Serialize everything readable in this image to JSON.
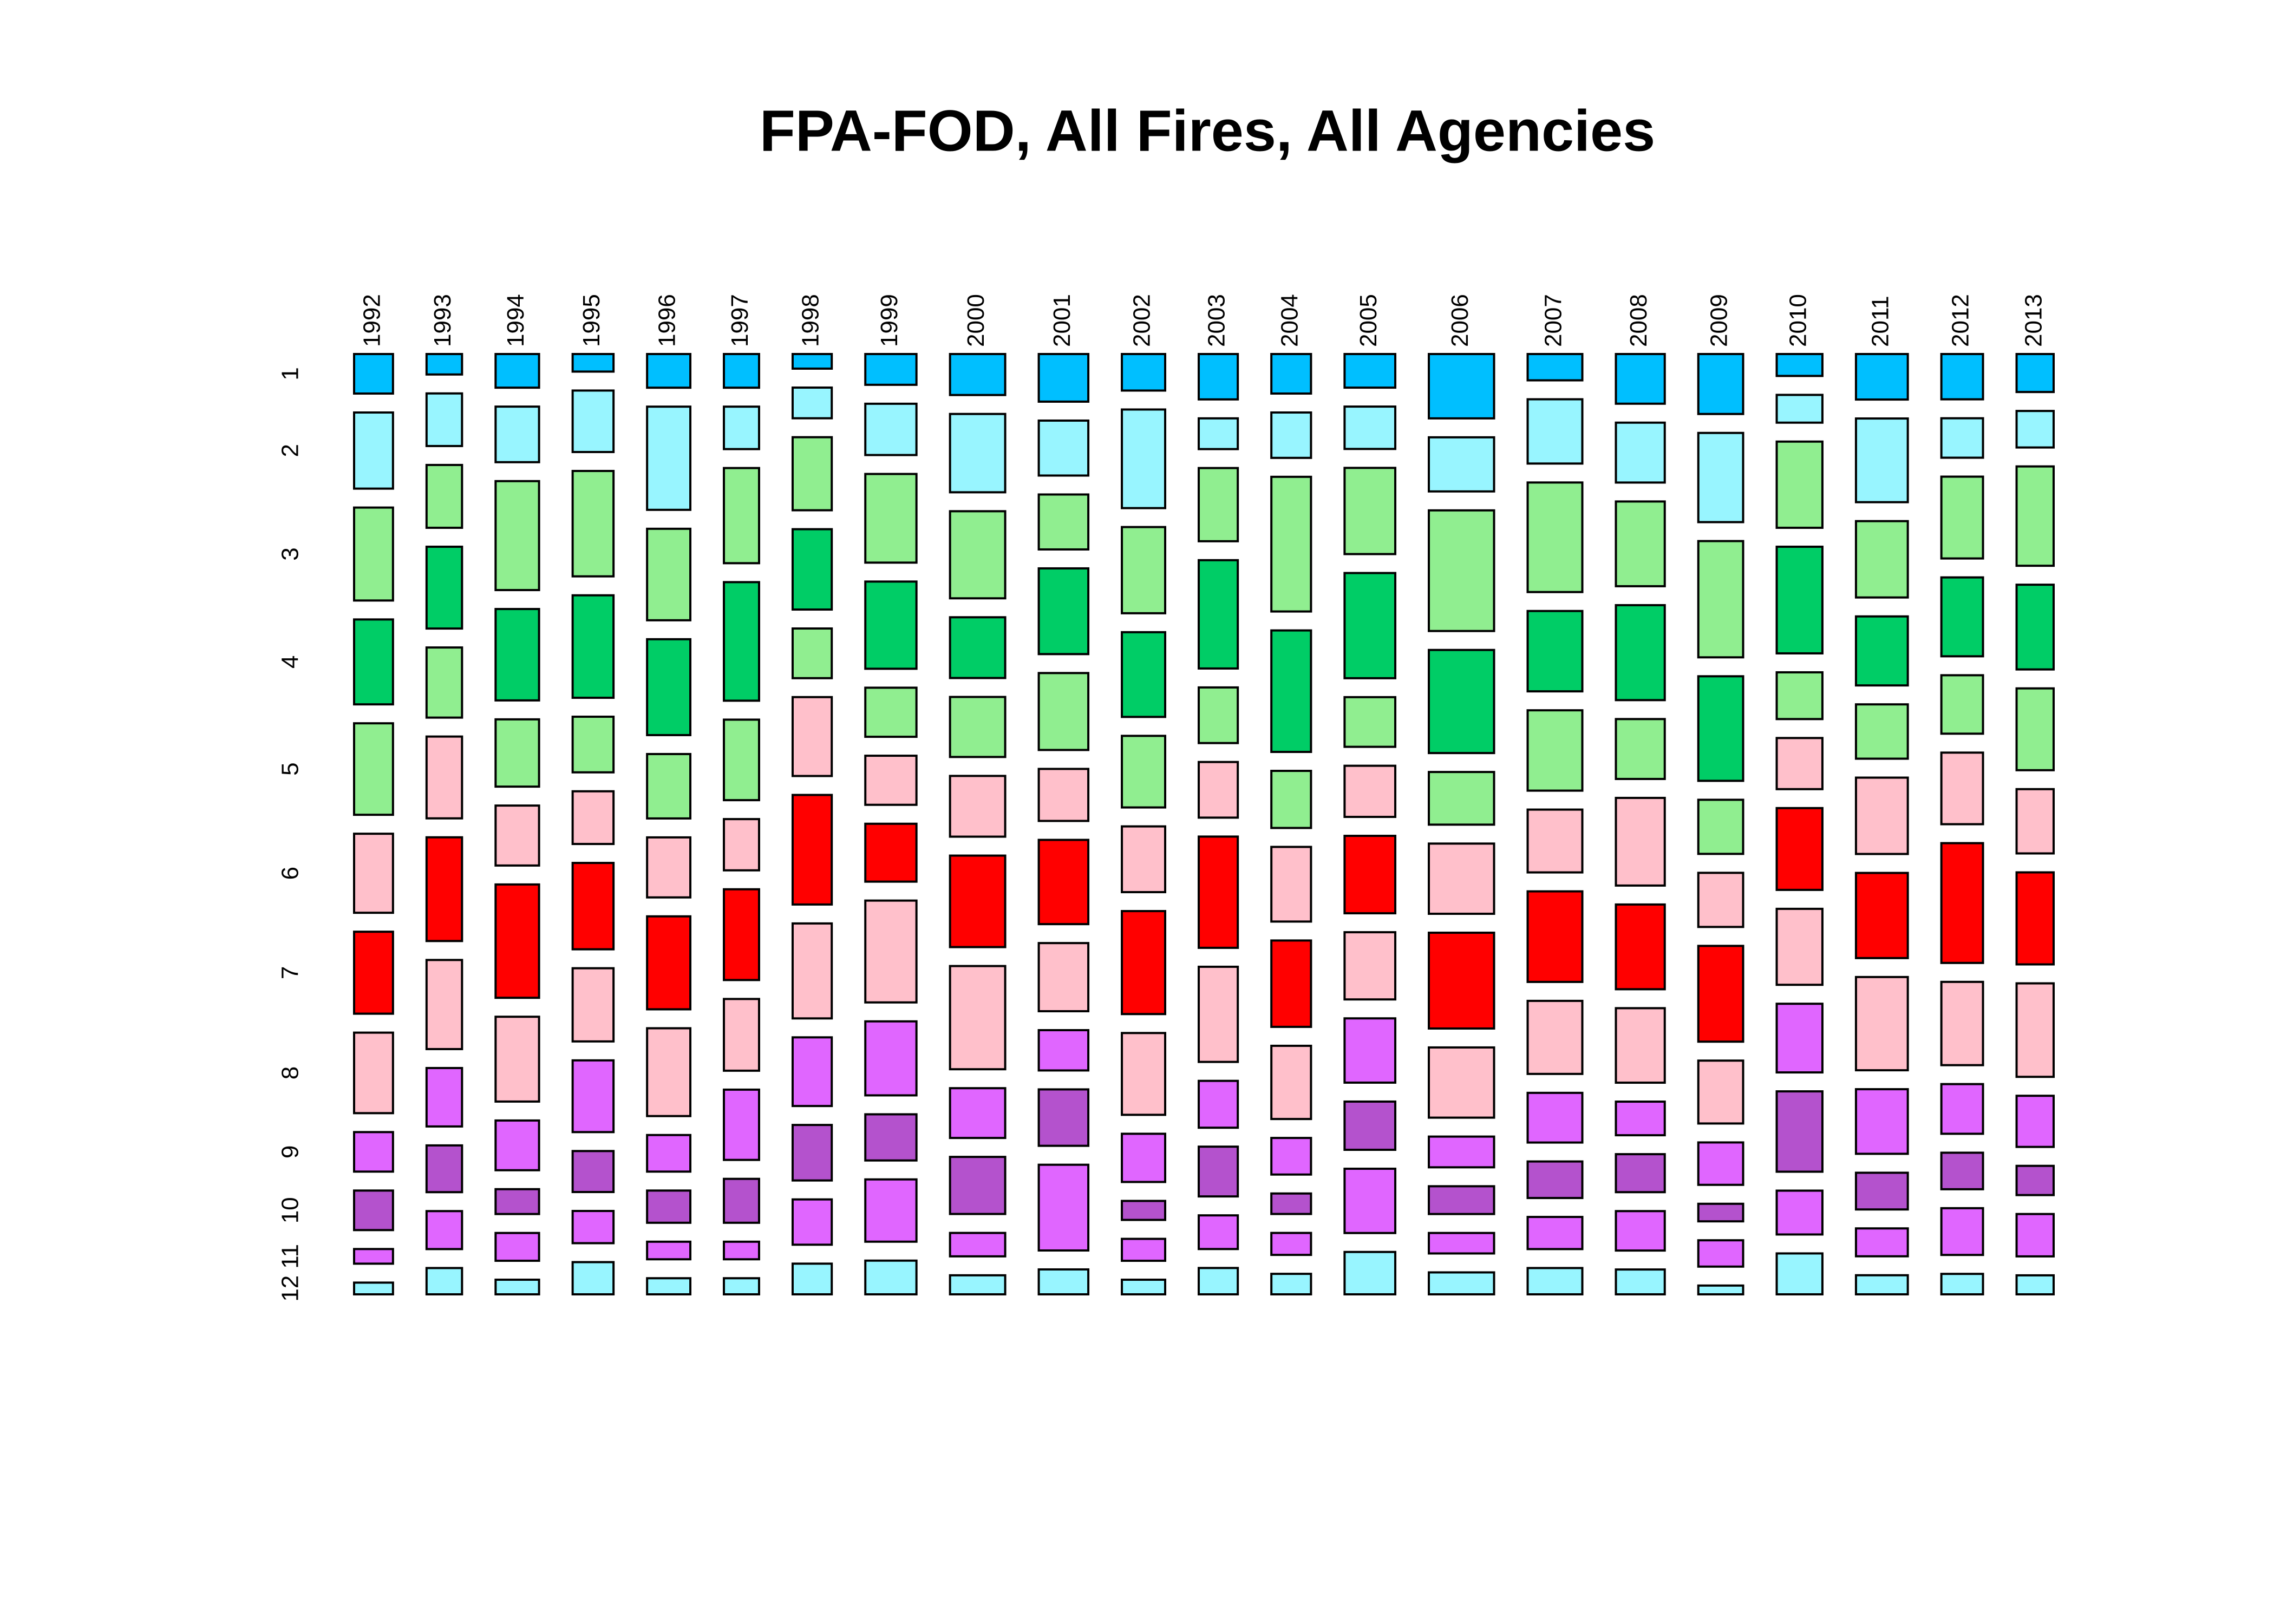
{
  "chart_data": {
    "type": "mosaic",
    "title": "FPA-FOD, All Fires, All Agencies",
    "categories": [
      "1992",
      "1993",
      "1994",
      "1995",
      "1996",
      "1997",
      "1998",
      "1999",
      "2000",
      "2001",
      "2002",
      "2003",
      "2004",
      "2005",
      "2006",
      "2007",
      "2008",
      "2009",
      "2010",
      "2011",
      "2012",
      "2013"
    ],
    "year_totals": [
      67975,
      61989,
      75955,
      71472,
      75574,
      61450,
      68370,
      89363,
      96416,
      86587,
      75656,
      68261,
      69279,
      88604,
      114004,
      95573,
      85378,
      78325,
      79889,
      90552,
      72769,
      64780
    ],
    "series": [
      {
        "name": "1",
        "color": "#00BFFF",
        "values": [
          5.4,
          2.8,
          4.6,
          2.4,
          4.6,
          4.6,
          2.0,
          4.2,
          5.6,
          6.5,
          5.0,
          6.2,
          5.4,
          4.6,
          8.8,
          3.6,
          6.8,
          8.2,
          3.0,
          6.2,
          6.2,
          5.2
        ]
      },
      {
        "name": "2",
        "color": "#98F5FF",
        "values": [
          10.4,
          7.2,
          7.6,
          8.4,
          14.1,
          5.8,
          4.2,
          7.0,
          10.7,
          7.5,
          13.5,
          4.2,
          6.2,
          5.8,
          7.4,
          8.8,
          8.2,
          12.2,
          3.8,
          11.4,
          5.4,
          5.0
        ]
      },
      {
        "name": "3",
        "color": "#90EE90",
        "values": [
          12.7,
          8.6,
          14.9,
          14.4,
          12.5,
          13.0,
          10.0,
          12.1,
          11.9,
          7.5,
          11.8,
          10.0,
          18.4,
          11.8,
          16.5,
          15.0,
          11.6,
          15.9,
          11.8,
          10.4,
          11.2,
          13.6
        ]
      },
      {
        "name": "4",
        "color": "#00CD66",
        "values": [
          11.6,
          11.2,
          12.5,
          14.0,
          13.1,
          16.2,
          11.0,
          11.9,
          8.3,
          11.7,
          11.6,
          14.8,
          16.6,
          14.4,
          14.1,
          11.0,
          13.0,
          14.3,
          14.6,
          9.4,
          10.8,
          11.6
        ]
      },
      {
        "name": "5",
        "color": "#90EE90",
        "values": [
          12.5,
          9.6,
          9.2,
          7.6,
          8.8,
          11.0,
          6.8,
          6.7,
          8.2,
          10.5,
          9.8,
          7.6,
          7.8,
          6.8,
          7.2,
          11.0,
          8.2,
          7.4,
          6.4,
          7.4,
          8.0,
          11.2
        ]
      },
      {
        "name": "6",
        "color": "#FFC0CB",
        "values": [
          10.8,
          11.2,
          8.2,
          7.2,
          8.2,
          7.0,
          10.8,
          6.7,
          8.3,
          7.1,
          9.0,
          7.6,
          10.2,
          7.0,
          9.6,
          8.6,
          12.0,
          7.4,
          7.0,
          10.4,
          9.8,
          8.8
        ]
      },
      {
        "name": "7",
        "color": "#FF0000",
        "values": [
          11.2,
          14.2,
          15.5,
          11.8,
          12.7,
          12.4,
          15.0,
          7.9,
          12.5,
          11.5,
          14.1,
          15.2,
          11.8,
          10.6,
          13.1,
          12.4,
          11.6,
          13.1,
          11.2,
          11.6,
          16.4,
          12.6
        ]
      },
      {
        "name": "8",
        "color": "#FFC0CB",
        "values": [
          11.0,
          12.2,
          11.6,
          10.0,
          12.0,
          9.8,
          13.0,
          13.9,
          14.1,
          9.3,
          11.2,
          13.0,
          10.0,
          9.2,
          9.6,
          10.0,
          10.2,
          8.6,
          10.4,
          12.7,
          11.4,
          12.8
        ]
      },
      {
        "name": "9",
        "color": "#E066FF",
        "values": [
          5.4,
          8.0,
          6.8,
          9.8,
          5.0,
          9.6,
          9.4,
          10.1,
          6.8,
          5.5,
          6.6,
          6.4,
          5.0,
          8.8,
          4.2,
          6.8,
          4.6,
          5.8,
          9.4,
          8.8,
          6.8,
          7.0
        ]
      },
      {
        "name": "10",
        "color": "#B452CD",
        "values": [
          5.4,
          6.4,
          3.4,
          5.6,
          4.4,
          6.0,
          7.6,
          6.3,
          7.8,
          7.7,
          2.6,
          6.8,
          2.8,
          6.6,
          3.8,
          5.0,
          5.2,
          2.4,
          11.0,
          5.0,
          5.0,
          4.0
        ]
      },
      {
        "name": "11",
        "color": "#E066FF",
        "values": [
          2.0,
          5.2,
          3.8,
          4.4,
          2.4,
          2.4,
          6.2,
          8.5,
          3.2,
          11.7,
          3.0,
          4.6,
          3.0,
          8.8,
          2.8,
          4.4,
          5.4,
          3.6,
          6.0,
          3.8,
          6.4,
          5.8
        ]
      },
      {
        "name": "12",
        "color": "#98F5FF",
        "values": [
          1.6,
          3.6,
          2.0,
          4.4,
          2.2,
          2.2,
          4.2,
          4.6,
          2.6,
          3.4,
          2.0,
          3.6,
          2.8,
          5.8,
          3.0,
          3.6,
          3.4,
          1.2,
          5.6,
          2.6,
          2.8,
          2.6
        ]
      }
    ]
  }
}
